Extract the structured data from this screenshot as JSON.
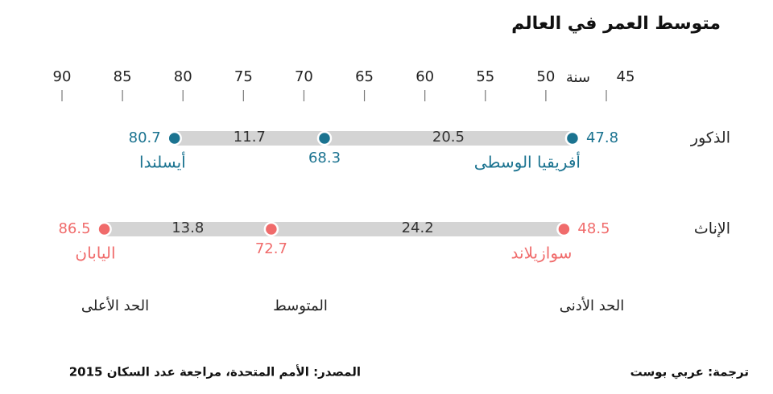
{
  "chart_data": {
    "type": "dumbbell",
    "title": "متوسط العمر في العالم",
    "xlim": [
      45,
      90
    ],
    "x_reversed": true,
    "xticks": [
      45,
      50,
      55,
      60,
      65,
      70,
      75,
      80,
      85,
      90
    ],
    "x_unit": "سنة",
    "bar_color": "#d4d4d4",
    "series": [
      {
        "name": "الذكور",
        "color": "#1b7390",
        "values": [
          47.8,
          68.3,
          80.7
        ],
        "min_country": "أفريقيا الوسطى",
        "max_country": "أيسلندا",
        "differences": [
          20.5,
          11.7
        ]
      },
      {
        "name": "الإناث",
        "color": "#f06b6b",
        "values": [
          48.5,
          72.7,
          86.5
        ],
        "min_country": "سوازيلاند",
        "max_country": "اليابان",
        "differences": [
          24.2,
          13.8
        ]
      }
    ],
    "position_labels": [
      "الحد الأدنى",
      "المتوسط",
      "الحد الأعلى"
    ],
    "source": "المصدر: الأمم المتحدة، مراجعة عدد السكان 2015",
    "credit": "ترجمة: عربي بوست"
  }
}
